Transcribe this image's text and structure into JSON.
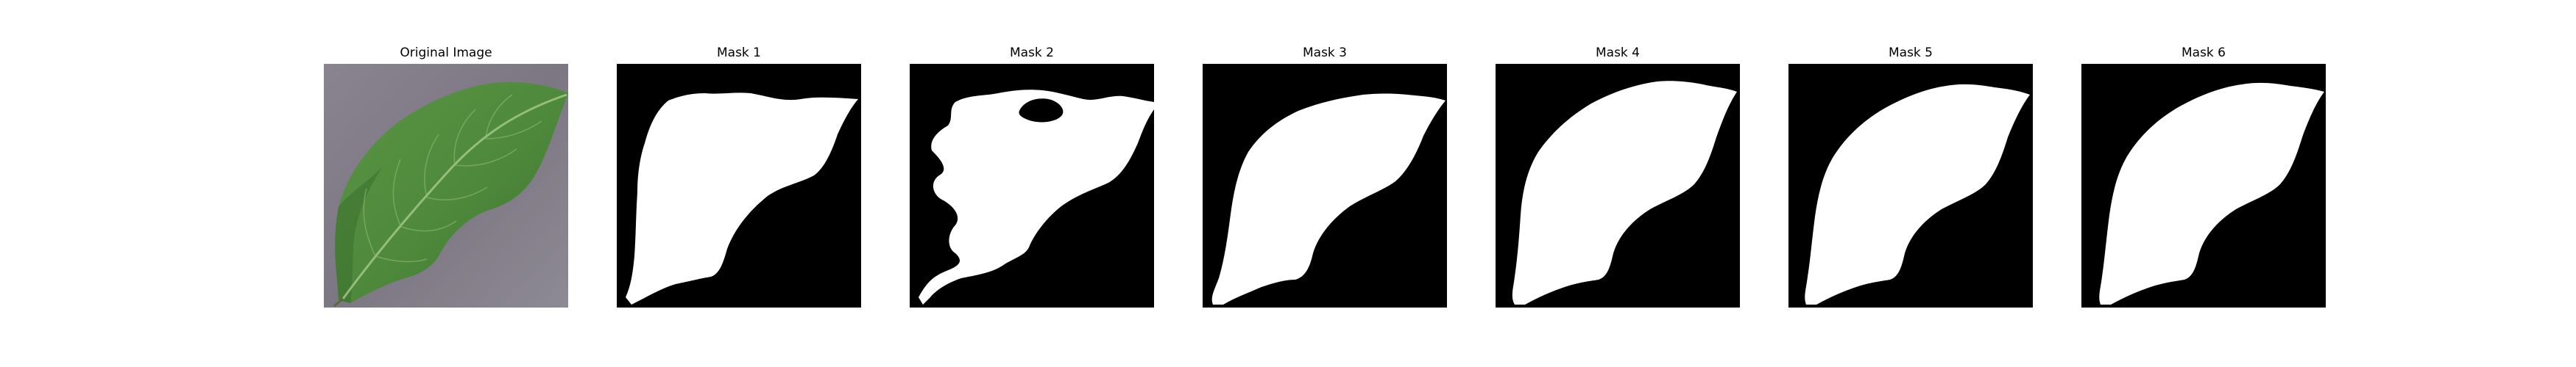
{
  "figure": {
    "background": "#ffffff",
    "panels": [
      {
        "title": "Original Image",
        "kind": "photo"
      },
      {
        "title": "Mask 1",
        "kind": "mask"
      },
      {
        "title": "Mask 2",
        "kind": "mask"
      },
      {
        "title": "Mask 3",
        "kind": "mask"
      },
      {
        "title": "Mask 4",
        "kind": "mask"
      },
      {
        "title": "Mask 5",
        "kind": "mask"
      },
      {
        "title": "Mask 6",
        "kind": "mask"
      }
    ],
    "colors": {
      "mask_background": "#000000",
      "mask_foreground": "#ffffff",
      "photo_background": "#7c7782",
      "leaf": "#4f8a3c",
      "leaf_dark": "#2f5e24",
      "leaf_vein": "#a6c98c"
    }
  }
}
